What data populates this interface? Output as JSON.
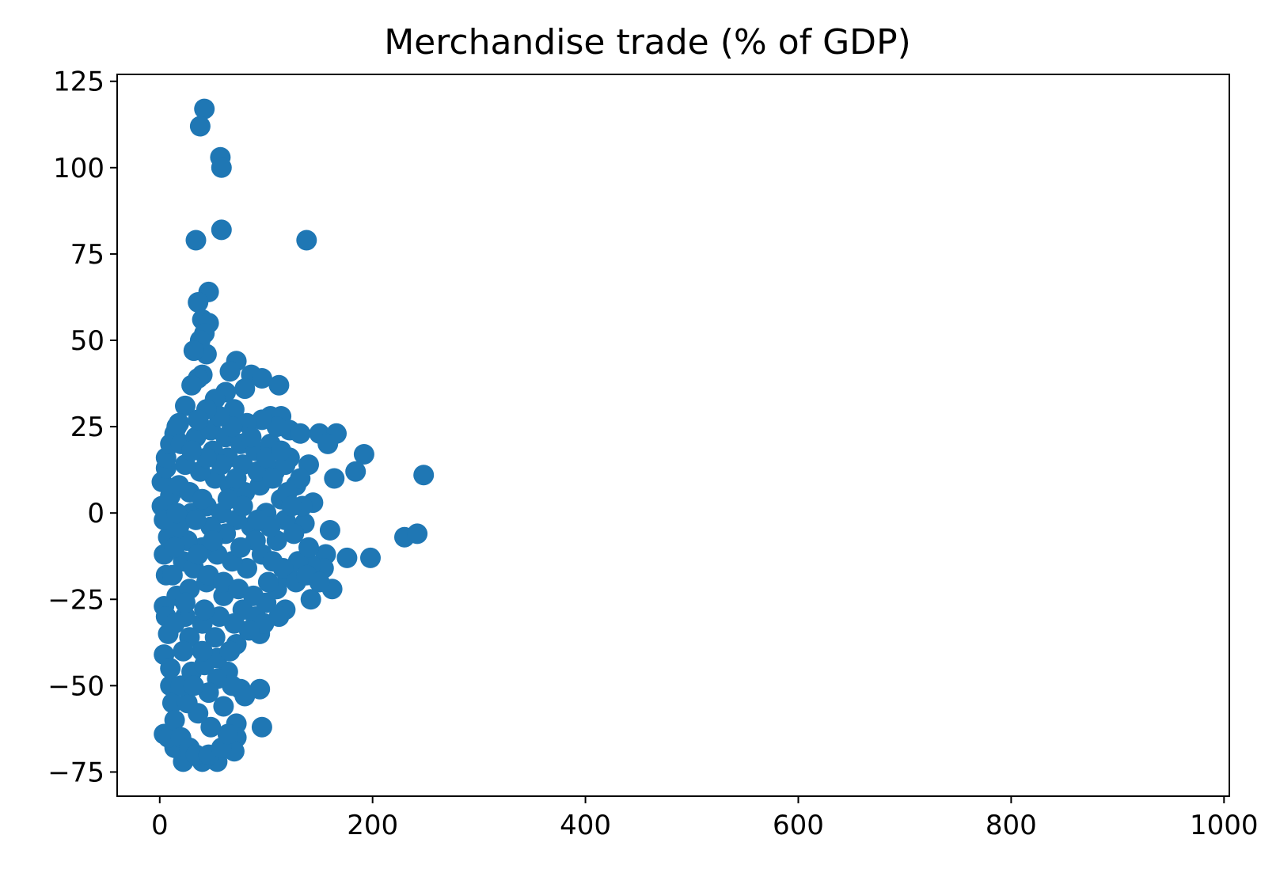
{
  "chart_data": {
    "type": "scatter",
    "title": "Merchandise trade (% of GDP)",
    "xlabel": "",
    "ylabel": "",
    "xlim": [
      -40,
      1005
    ],
    "ylim": [
      -82,
      127
    ],
    "x_ticks": [
      0,
      200,
      400,
      600,
      800,
      1000
    ],
    "x_tick_labels": [
      "0",
      "200",
      "400",
      "600",
      "800",
      "1000"
    ],
    "y_ticks": [
      -75,
      -50,
      -25,
      0,
      25,
      50,
      75,
      100,
      125
    ],
    "y_tick_labels": [
      "−75",
      "−50",
      "−25",
      "0",
      "25",
      "50",
      "75",
      "100",
      "125"
    ],
    "grid": false,
    "marker_color": "#1f77b4",
    "points": [
      [
        42,
        117
      ],
      [
        38,
        112
      ],
      [
        57,
        103
      ],
      [
        58,
        100
      ],
      [
        58,
        82
      ],
      [
        34,
        79
      ],
      [
        138,
        79
      ],
      [
        46,
        64
      ],
      [
        36,
        61
      ],
      [
        40,
        56
      ],
      [
        46,
        55
      ],
      [
        42,
        52
      ],
      [
        38,
        50
      ],
      [
        44,
        46
      ],
      [
        32,
        47
      ],
      [
        40,
        40
      ],
      [
        36,
        39
      ],
      [
        72,
        44
      ],
      [
        66,
        41
      ],
      [
        86,
        40
      ],
      [
        96,
        39
      ],
      [
        112,
        37
      ],
      [
        80,
        36
      ],
      [
        62,
        35
      ],
      [
        30,
        37
      ],
      [
        52,
        33
      ],
      [
        24,
        31
      ],
      [
        70,
        30
      ],
      [
        104,
        28
      ],
      [
        114,
        28
      ],
      [
        18,
        26
      ],
      [
        14,
        23
      ],
      [
        150,
        23
      ],
      [
        166,
        23
      ],
      [
        122,
        24
      ],
      [
        132,
        23
      ],
      [
        192,
        17
      ],
      [
        158,
        20
      ],
      [
        184,
        12
      ],
      [
        164,
        10
      ],
      [
        248,
        11
      ],
      [
        144,
        3
      ],
      [
        136,
        -3
      ],
      [
        160,
        -5
      ],
      [
        230,
        -7
      ],
      [
        242,
        -6
      ],
      [
        198,
        -13
      ],
      [
        176,
        -13
      ],
      [
        156,
        -12
      ],
      [
        154,
        -16
      ],
      [
        142,
        -15
      ],
      [
        162,
        -22
      ],
      [
        142,
        -25
      ],
      [
        118,
        -28
      ],
      [
        94,
        -35
      ],
      [
        72,
        -38
      ],
      [
        64,
        -46
      ],
      [
        76,
        -51
      ],
      [
        94,
        -51
      ],
      [
        80,
        -53
      ],
      [
        96,
        -62
      ],
      [
        72,
        -61
      ],
      [
        72,
        -65
      ],
      [
        70,
        -69
      ],
      [
        54,
        -72
      ],
      [
        40,
        -72
      ],
      [
        22,
        -72
      ],
      [
        14,
        -68
      ],
      [
        4,
        -64
      ],
      [
        8,
        -65
      ],
      [
        4,
        -41
      ],
      [
        10,
        -50
      ],
      [
        12,
        -55
      ],
      [
        8,
        -35
      ],
      [
        4,
        -27
      ],
      [
        6,
        -18
      ],
      [
        8,
        -7
      ],
      [
        4,
        -12
      ],
      [
        2,
        2
      ],
      [
        2,
        9
      ],
      [
        6,
        13
      ],
      [
        6,
        16
      ],
      [
        10,
        20
      ],
      [
        16,
        25
      ],
      [
        10,
        5
      ],
      [
        4,
        -2
      ],
      [
        6,
        -30
      ],
      [
        10,
        -45
      ],
      [
        14,
        -60
      ],
      [
        20,
        -65
      ],
      [
        28,
        -68
      ],
      [
        34,
        -70
      ],
      [
        46,
        -70
      ],
      [
        58,
        -68
      ],
      [
        64,
        -64
      ],
      [
        48,
        -62
      ],
      [
        36,
        -58
      ],
      [
        26,
        -55
      ],
      [
        20,
        -50
      ],
      [
        30,
        -46
      ],
      [
        42,
        -44
      ],
      [
        54,
        -42
      ],
      [
        66,
        -40
      ],
      [
        52,
        -36
      ],
      [
        40,
        -32
      ],
      [
        24,
        -30
      ],
      [
        16,
        -24
      ],
      [
        28,
        -22
      ],
      [
        44,
        -20
      ],
      [
        60,
        -24
      ],
      [
        78,
        -28
      ],
      [
        90,
        -30
      ],
      [
        100,
        -26
      ],
      [
        110,
        -22
      ],
      [
        120,
        -18
      ],
      [
        130,
        -14
      ],
      [
        140,
        -10
      ],
      [
        126,
        -6
      ],
      [
        110,
        -8
      ],
      [
        96,
        -12
      ],
      [
        82,
        -16
      ],
      [
        68,
        -14
      ],
      [
        54,
        -12
      ],
      [
        40,
        -10
      ],
      [
        26,
        -8
      ],
      [
        18,
        -4
      ],
      [
        30,
        0
      ],
      [
        44,
        2
      ],
      [
        58,
        0
      ],
      [
        72,
        -2
      ],
      [
        86,
        -4
      ],
      [
        100,
        0
      ],
      [
        114,
        4
      ],
      [
        128,
        8
      ],
      [
        140,
        14
      ],
      [
        122,
        16
      ],
      [
        108,
        12
      ],
      [
        94,
        8
      ],
      [
        80,
        6
      ],
      [
        66,
        8
      ],
      [
        52,
        10
      ],
      [
        38,
        12
      ],
      [
        24,
        14
      ],
      [
        20,
        20
      ],
      [
        34,
        22
      ],
      [
        48,
        24
      ],
      [
        62,
        22
      ],
      [
        76,
        20
      ],
      [
        90,
        18
      ],
      [
        104,
        20
      ],
      [
        118,
        14
      ],
      [
        132,
        10
      ],
      [
        110,
        25
      ],
      [
        96,
        27
      ],
      [
        82,
        26
      ],
      [
        68,
        25
      ],
      [
        56,
        28
      ],
      [
        44,
        30
      ],
      [
        36,
        27
      ],
      [
        50,
        18
      ],
      [
        64,
        16
      ],
      [
        78,
        14
      ],
      [
        92,
        12
      ],
      [
        106,
        10
      ],
      [
        120,
        6
      ],
      [
        134,
        2
      ],
      [
        118,
        -2
      ],
      [
        104,
        -4
      ],
      [
        90,
        -8
      ],
      [
        76,
        -10
      ],
      [
        62,
        -6
      ],
      [
        48,
        -4
      ],
      [
        34,
        -2
      ],
      [
        22,
        -14
      ],
      [
        32,
        -16
      ],
      [
        46,
        -18
      ],
      [
        60,
        -20
      ],
      [
        74,
        -22
      ],
      [
        88,
        -24
      ],
      [
        102,
        -20
      ],
      [
        116,
        -16
      ],
      [
        128,
        -20
      ],
      [
        112,
        -30
      ],
      [
        98,
        -32
      ],
      [
        84,
        -34
      ],
      [
        70,
        -32
      ],
      [
        56,
        -30
      ],
      [
        42,
        -28
      ],
      [
        28,
        -36
      ],
      [
        40,
        -40
      ],
      [
        54,
        -48
      ],
      [
        68,
        -50
      ],
      [
        60,
        -56
      ],
      [
        46,
        -52
      ],
      [
        32,
        -50
      ],
      [
        22,
        -40
      ],
      [
        14,
        -32
      ],
      [
        12,
        -18
      ],
      [
        14,
        -10
      ],
      [
        16,
        0
      ],
      [
        18,
        8
      ],
      [
        28,
        6
      ],
      [
        40,
        4
      ],
      [
        24,
        -26
      ],
      [
        36,
        -12
      ],
      [
        50,
        -8
      ],
      [
        64,
        4
      ],
      [
        78,
        2
      ],
      [
        92,
        -2
      ],
      [
        106,
        -14
      ],
      [
        72,
        10
      ],
      [
        58,
        14
      ],
      [
        44,
        16
      ],
      [
        30,
        18
      ],
      [
        86,
        22
      ],
      [
        100,
        16
      ],
      [
        114,
        18
      ],
      [
        124,
        2
      ],
      [
        138,
        -18
      ],
      [
        150,
        -20
      ]
    ]
  }
}
